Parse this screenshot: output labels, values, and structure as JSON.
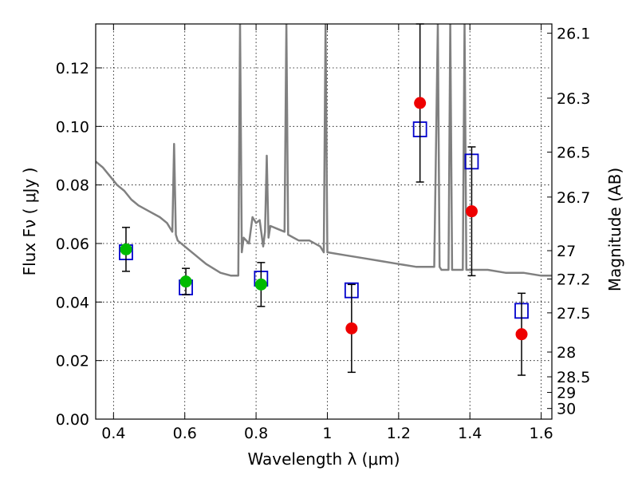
{
  "chart_data": {
    "type": "scatter",
    "xlabel": "Wavelength  λ (μm)",
    "ylabel": "Flux  Fν  ( μJy )",
    "ylabel_right": "Magnitude (AB)",
    "xlim": [
      0.35,
      1.63
    ],
    "ylim": [
      0.0,
      0.135
    ],
    "grid": true,
    "x_ticks": [
      0.4,
      0.6,
      0.8,
      1.0,
      1.2,
      1.4,
      1.6
    ],
    "x_tick_labels": [
      "0.4",
      "0.6",
      "0.8",
      "1",
      "1.2",
      "1.4",
      "1.6"
    ],
    "y_ticks": [
      0.0,
      0.02,
      0.04,
      0.06,
      0.08,
      0.1,
      0.12
    ],
    "y_tick_labels": [
      "0.00",
      "0.02",
      "0.04",
      "0.06",
      "0.08",
      "0.10",
      "0.12"
    ],
    "magnitude_ticks": [
      "26.1",
      "26.3",
      "26.5",
      "26.7",
      "27",
      "27.2",
      "27.5",
      "28",
      "28.5",
      "29",
      "30"
    ],
    "magnitude_labels": [
      "26.1",
      "26.3",
      "26.5",
      "26.7",
      "27",
      "27.2",
      "27.5",
      "28",
      "28.5",
      "29",
      "30"
    ],
    "colors": {
      "model": "#808080",
      "green": "#00bb00",
      "red": "#ee0000",
      "blue": "#0000cc",
      "errorbar": "#000000",
      "grid": "#000000"
    },
    "series": [
      {
        "name": "Model SED",
        "kind": "line",
        "x": [
          0.35,
          0.37,
          0.39,
          0.41,
          0.43,
          0.45,
          0.47,
          0.5,
          0.53,
          0.55,
          0.565,
          0.57,
          0.575,
          0.58,
          0.6,
          0.63,
          0.66,
          0.7,
          0.73,
          0.75,
          0.755,
          0.76,
          0.765,
          0.78,
          0.79,
          0.8,
          0.81,
          0.82,
          0.825,
          0.83,
          0.835,
          0.84,
          0.86,
          0.88,
          0.885,
          0.89,
          0.92,
          0.95,
          0.98,
          0.99,
          0.995,
          1.0,
          1.05,
          1.1,
          1.15,
          1.2,
          1.25,
          1.3,
          1.31,
          1.315,
          1.32,
          1.33,
          1.34,
          1.345,
          1.35,
          1.36,
          1.37,
          1.38,
          1.385,
          1.39,
          1.4,
          1.45,
          1.5,
          1.55,
          1.6,
          1.63
        ],
        "y": [
          0.088,
          0.086,
          0.083,
          0.08,
          0.078,
          0.075,
          0.073,
          0.071,
          0.069,
          0.067,
          0.064,
          0.094,
          0.063,
          0.061,
          0.059,
          0.056,
          0.053,
          0.05,
          0.049,
          0.049,
          0.135,
          0.057,
          0.062,
          0.06,
          0.069,
          0.067,
          0.068,
          0.059,
          0.064,
          0.09,
          0.062,
          0.066,
          0.065,
          0.064,
          0.135,
          0.063,
          0.061,
          0.061,
          0.059,
          0.057,
          0.135,
          0.057,
          0.056,
          0.055,
          0.054,
          0.053,
          0.052,
          0.052,
          0.135,
          0.052,
          0.051,
          0.051,
          0.051,
          0.135,
          0.051,
          0.051,
          0.051,
          0.051,
          0.135,
          0.051,
          0.051,
          0.051,
          0.05,
          0.05,
          0.049,
          0.049
        ]
      },
      {
        "name": "Green points",
        "kind": "points",
        "marker": "circle",
        "x": [
          0.435,
          0.603,
          0.814
        ],
        "y": [
          0.058,
          0.047,
          0.046
        ],
        "err": [
          0.0075,
          0.0045,
          0.0075
        ]
      },
      {
        "name": "Red points",
        "kind": "points",
        "marker": "circle",
        "x": [
          1.068,
          1.26,
          1.405,
          1.545
        ],
        "y": [
          0.031,
          0.108,
          0.071,
          0.029
        ],
        "err": [
          0.015,
          0.027,
          0.022,
          0.014
        ]
      },
      {
        "name": "Blue squares",
        "kind": "points",
        "marker": "open-square",
        "x": [
          0.435,
          0.603,
          0.814,
          1.068,
          1.26,
          1.405,
          1.545
        ],
        "y": [
          0.057,
          0.045,
          0.048,
          0.044,
          0.099,
          0.088,
          0.037
        ]
      }
    ]
  }
}
